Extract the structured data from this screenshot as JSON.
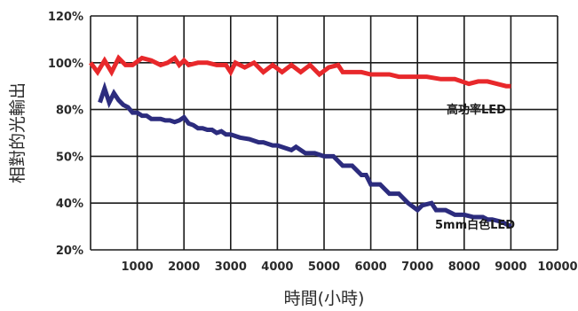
{
  "chart_data": {
    "type": "line",
    "title": "",
    "xlabel": "時間(小時)",
    "ylabel": "相對的光輸出",
    "xlim": [
      0,
      10000
    ],
    "x_ticks": [
      1000,
      2000,
      3000,
      4000,
      5000,
      6000,
      7000,
      8000,
      9000,
      10000
    ],
    "x_tick_labels": [
      "1000",
      "2000",
      "3000",
      "4000",
      "5000",
      "6000",
      "7000",
      "8000",
      "9000",
      "10000"
    ],
    "y_ticks": [
      20,
      40,
      50,
      80,
      100,
      120
    ],
    "y_tick_labels": [
      "20%",
      "40%",
      "50%",
      "80%",
      "100%",
      "120%"
    ],
    "y_ticks_evenly_spaced": true,
    "grid": true,
    "legend": "none (series labelled inline)",
    "series": [
      {
        "name": "高功率LED",
        "color": "#e8282b",
        "x": [
          0,
          150,
          300,
          450,
          600,
          750,
          900,
          1100,
          1300,
          1500,
          1650,
          1800,
          1900,
          2000,
          2100,
          2300,
          2500,
          2700,
          2900,
          3000,
          3100,
          3300,
          3500,
          3700,
          3900,
          4100,
          4300,
          4500,
          4700,
          4900,
          5100,
          5300,
          5400,
          5600,
          5800,
          6000,
          6200,
          6400,
          6600,
          6800,
          7000,
          7200,
          7500,
          7800,
          8100,
          8300,
          8500,
          8700,
          8900,
          9000
        ],
        "values": [
          100,
          96,
          101,
          96,
          102,
          99,
          99,
          102,
          101,
          99,
          100,
          102,
          99,
          101,
          99,
          100,
          100,
          99,
          99,
          96,
          100,
          98,
          100,
          96,
          99,
          96,
          99,
          96,
          99,
          95,
          98,
          99,
          96,
          96,
          96,
          95,
          95,
          95,
          94,
          94,
          94,
          94,
          93,
          93,
          91,
          92,
          92,
          91,
          90,
          90
        ]
      },
      {
        "name": "5mm白色LED",
        "color": "#2c2c7e",
        "x": [
          200,
          300,
          400,
          500,
          600,
          700,
          800,
          900,
          1000,
          1100,
          1200,
          1300,
          1400,
          1500,
          1600,
          1700,
          1800,
          1900,
          2000,
          2100,
          2200,
          2300,
          2400,
          2500,
          2600,
          2700,
          2800,
          2900,
          3000,
          3200,
          3400,
          3600,
          3700,
          3900,
          4000,
          4200,
          4300,
          4400,
          4600,
          4800,
          5000,
          5200,
          5400,
          5600,
          5800,
          5900,
          6000,
          6200,
          6400,
          6600,
          6800,
          7000,
          7100,
          7300,
          7400,
          7600,
          7800,
          8000,
          8200,
          8400,
          8500,
          8600,
          8800,
          9000
        ],
        "values": [
          83,
          89,
          83,
          87,
          84,
          82,
          81,
          78,
          78,
          76,
          76,
          74,
          74,
          74,
          73,
          73,
          72,
          73,
          75,
          71,
          70,
          68,
          68,
          67,
          67,
          65,
          66,
          64,
          64,
          62,
          61,
          59,
          59,
          57,
          57,
          55,
          54,
          56,
          52,
          52,
          50,
          50,
          48,
          48,
          46,
          46,
          44,
          44,
          42,
          42,
          40,
          37,
          39,
          40,
          37,
          37,
          35,
          35,
          34,
          34,
          33,
          33,
          32,
          30
        ]
      }
    ]
  }
}
